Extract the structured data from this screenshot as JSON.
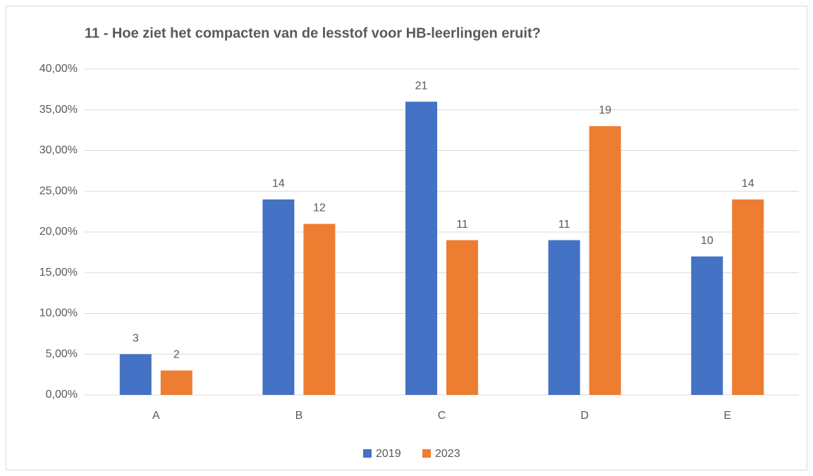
{
  "chart_data": {
    "type": "bar",
    "title": "11 - Hoe ziet het compacten van de lesstof voor HB-leerlingen eruit?",
    "categories": [
      "A",
      "B",
      "C",
      "D",
      "E"
    ],
    "series": [
      {
        "name": "2019",
        "color": "#4472c4",
        "values": [
          5,
          24,
          36,
          19,
          17
        ],
        "counts": [
          3,
          14,
          21,
          11,
          10
        ]
      },
      {
        "name": "2023",
        "color": "#ed7d31",
        "values": [
          3,
          21,
          19,
          33,
          24
        ],
        "counts": [
          2,
          12,
          11,
          19,
          14
        ]
      }
    ],
    "ylim": [
      0,
      40
    ],
    "yticks": [
      {
        "value": 0,
        "label": "0,00%"
      },
      {
        "value": 5,
        "label": "5,00%"
      },
      {
        "value": 10,
        "label": "10,00%"
      },
      {
        "value": 15,
        "label": "15,00%"
      },
      {
        "value": 20,
        "label": "20,00%"
      },
      {
        "value": 25,
        "label": "25,00%"
      },
      {
        "value": 30,
        "label": "30,00%"
      },
      {
        "value": 35,
        "label": "35,00%"
      },
      {
        "value": 40,
        "label": "40,00%"
      }
    ],
    "grid": true,
    "legend": "bottom"
  }
}
